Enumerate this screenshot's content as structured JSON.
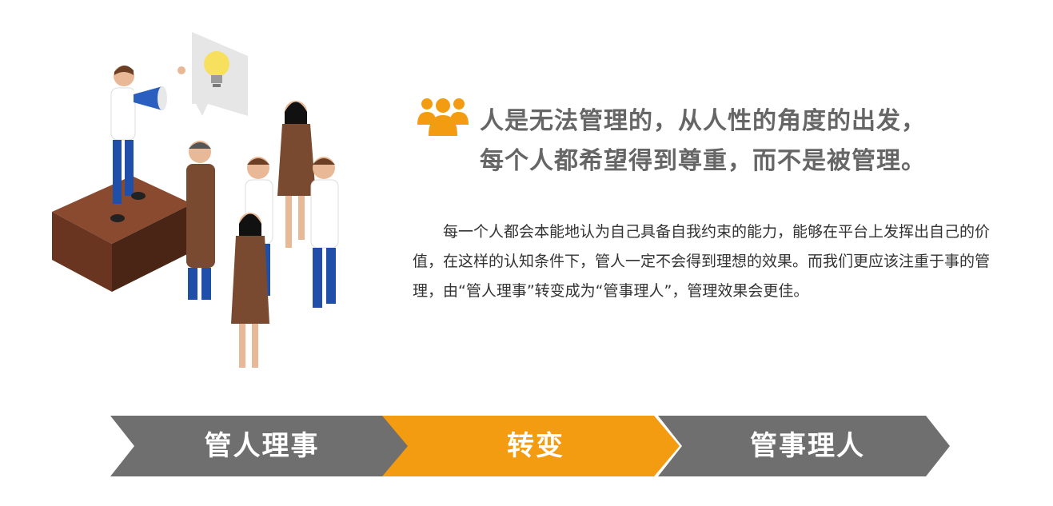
{
  "heading": {
    "icon": "people-group-icon",
    "line1": "人是无法管理的，从人性的角度的出发，",
    "line2": "每个人都希望得到尊重，而不是被管理。"
  },
  "body": {
    "paragraph": "每一个人都会本能地认为自己具备自我约束的能力，能够在平台上发挥出自己的价值，在这样的认知条件下，管人一定不会得到理想的效果。而我们更应该注重于事的管理，由“管人理事”转变成为“管事理人”，管理效果会更佳。"
  },
  "process": {
    "steps": [
      {
        "label": "管人理事",
        "color": "#6f6f6f"
      },
      {
        "label": "转变",
        "color": "#f39c12"
      },
      {
        "label": "管事理人",
        "color": "#6f6f6f"
      }
    ]
  },
  "colors": {
    "accent": "#f39c12",
    "heading": "#666666",
    "body": "#333333"
  }
}
